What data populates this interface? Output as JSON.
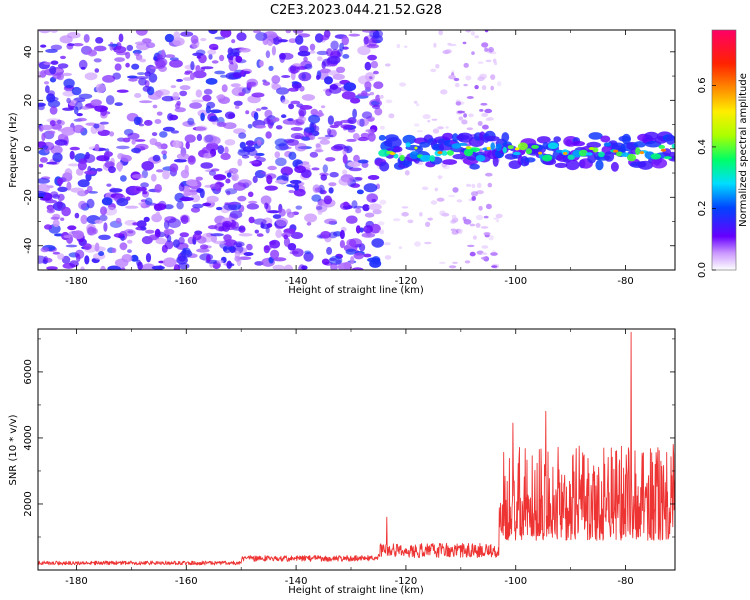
{
  "title": "C2E3.2023.044.21.52.G28",
  "chart_data": [
    {
      "type": "heatmap",
      "xlabel": "Height of straight line (km)",
      "ylabel": "Frequency (Hz)",
      "xlim": [
        -187,
        -71
      ],
      "ylim": [
        -50,
        49
      ],
      "xticks": [
        -180,
        -160,
        -140,
        -120,
        -100,
        -80
      ],
      "yticks": [
        -40,
        -20,
        0,
        20,
        40
      ],
      "colorbar": {
        "label": "Normalized spectral amplitude",
        "range": [
          0,
          0.78
        ],
        "ticks": [
          0.0,
          0.2,
          0.4,
          0.6
        ],
        "colormap": "gist_rainbow_r"
      },
      "regions": [
        {
          "x_from": -187,
          "x_to": -125,
          "description_values": {
            "mean_amplitude": 0.12,
            "spread_hz": [
              -50,
              49
            ]
          }
        },
        {
          "x_from": -125,
          "x_to": -103,
          "description_values": {
            "mean_amplitude": 0.04,
            "spread_hz": [
              -50,
              49
            ]
          }
        },
        {
          "x_from": -125,
          "x_to": -71,
          "description_values": {
            "peak_amplitude": 0.55,
            "center_hz": -1,
            "band_hz": [
              -7,
              6
            ]
          }
        }
      ],
      "grid": false
    },
    {
      "type": "line",
      "xlabel": "Height of straight line (km)",
      "ylabel": "SNR (10 * v/v)",
      "xlim": [
        -187,
        -71
      ],
      "ylim": [
        0,
        7300
      ],
      "xticks": [
        -180,
        -160,
        -140,
        -120,
        -100,
        -80
      ],
      "yticks": [
        2000,
        4000,
        6000
      ],
      "color": "#ee3333",
      "series_segments": [
        {
          "x_from": -187,
          "x_to": -150,
          "baseline": 200,
          "noise": 60
        },
        {
          "x_from": -150,
          "x_to": -125,
          "baseline": 330,
          "noise": 90
        },
        {
          "x_from": -125,
          "x_to": -103,
          "baseline": 550,
          "noise": 220
        },
        {
          "x_from": -103,
          "x_to": -71,
          "baseline": 1800,
          "noise": 1300
        }
      ],
      "peaks": [
        {
          "x": -123.5,
          "y": 1600
        },
        {
          "x": -100.5,
          "y": 4450
        },
        {
          "x": -94.5,
          "y": 4800
        },
        {
          "x": -79.0,
          "y": 7200
        },
        {
          "x": -71.3,
          "y": 3800
        }
      ],
      "grid": false
    }
  ]
}
